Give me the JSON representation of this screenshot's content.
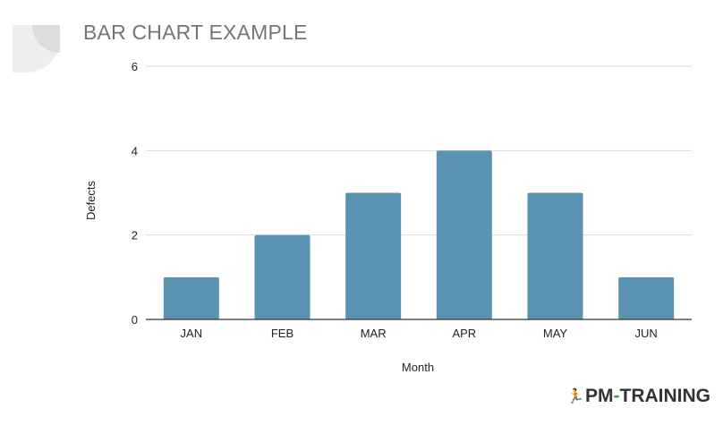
{
  "title": "BAR CHART EXAMPLE",
  "brand": {
    "prefix": "PM",
    "dash": "-",
    "suffix": "TRAINING",
    "accent": "#3ea23b"
  },
  "chart_data": {
    "type": "bar",
    "categories": [
      "JAN",
      "FEB",
      "MAR",
      "APR",
      "MAY",
      "JUN"
    ],
    "values": [
      1,
      2,
      3,
      4,
      3,
      1
    ],
    "title": "BAR CHART EXAMPLE",
    "xlabel": "Month",
    "ylabel": "Defects",
    "ylim": [
      0,
      6
    ],
    "yticks": [
      0,
      2,
      4,
      6
    ],
    "grid": true,
    "bar_color": "#5a93b1"
  }
}
